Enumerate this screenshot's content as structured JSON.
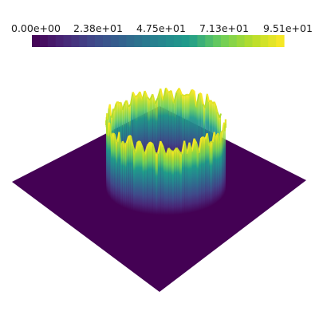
{
  "chart_data": {
    "type": "surface",
    "title": "",
    "colormap": "viridis",
    "colormap_stops": [
      "#440154",
      "#482777",
      "#3f4a8a",
      "#31678e",
      "#26838f",
      "#1f9d8a",
      "#6cce5a",
      "#b6de2b",
      "#fee825"
    ],
    "range": [
      0,
      95.1
    ],
    "colorbar": {
      "ticks": [
        "0.00e+00",
        "2.38e+01",
        "4.75e+01",
        "7.13e+01",
        "9.51e+01"
      ],
      "tick_values": [
        0,
        23.8,
        47.5,
        71.3,
        95.1
      ],
      "placement": "top"
    },
    "surface": {
      "plane_value": 0,
      "feature": "ring",
      "ring_peak_value_approx": 95.1,
      "ring_has_gap": true
    }
  }
}
